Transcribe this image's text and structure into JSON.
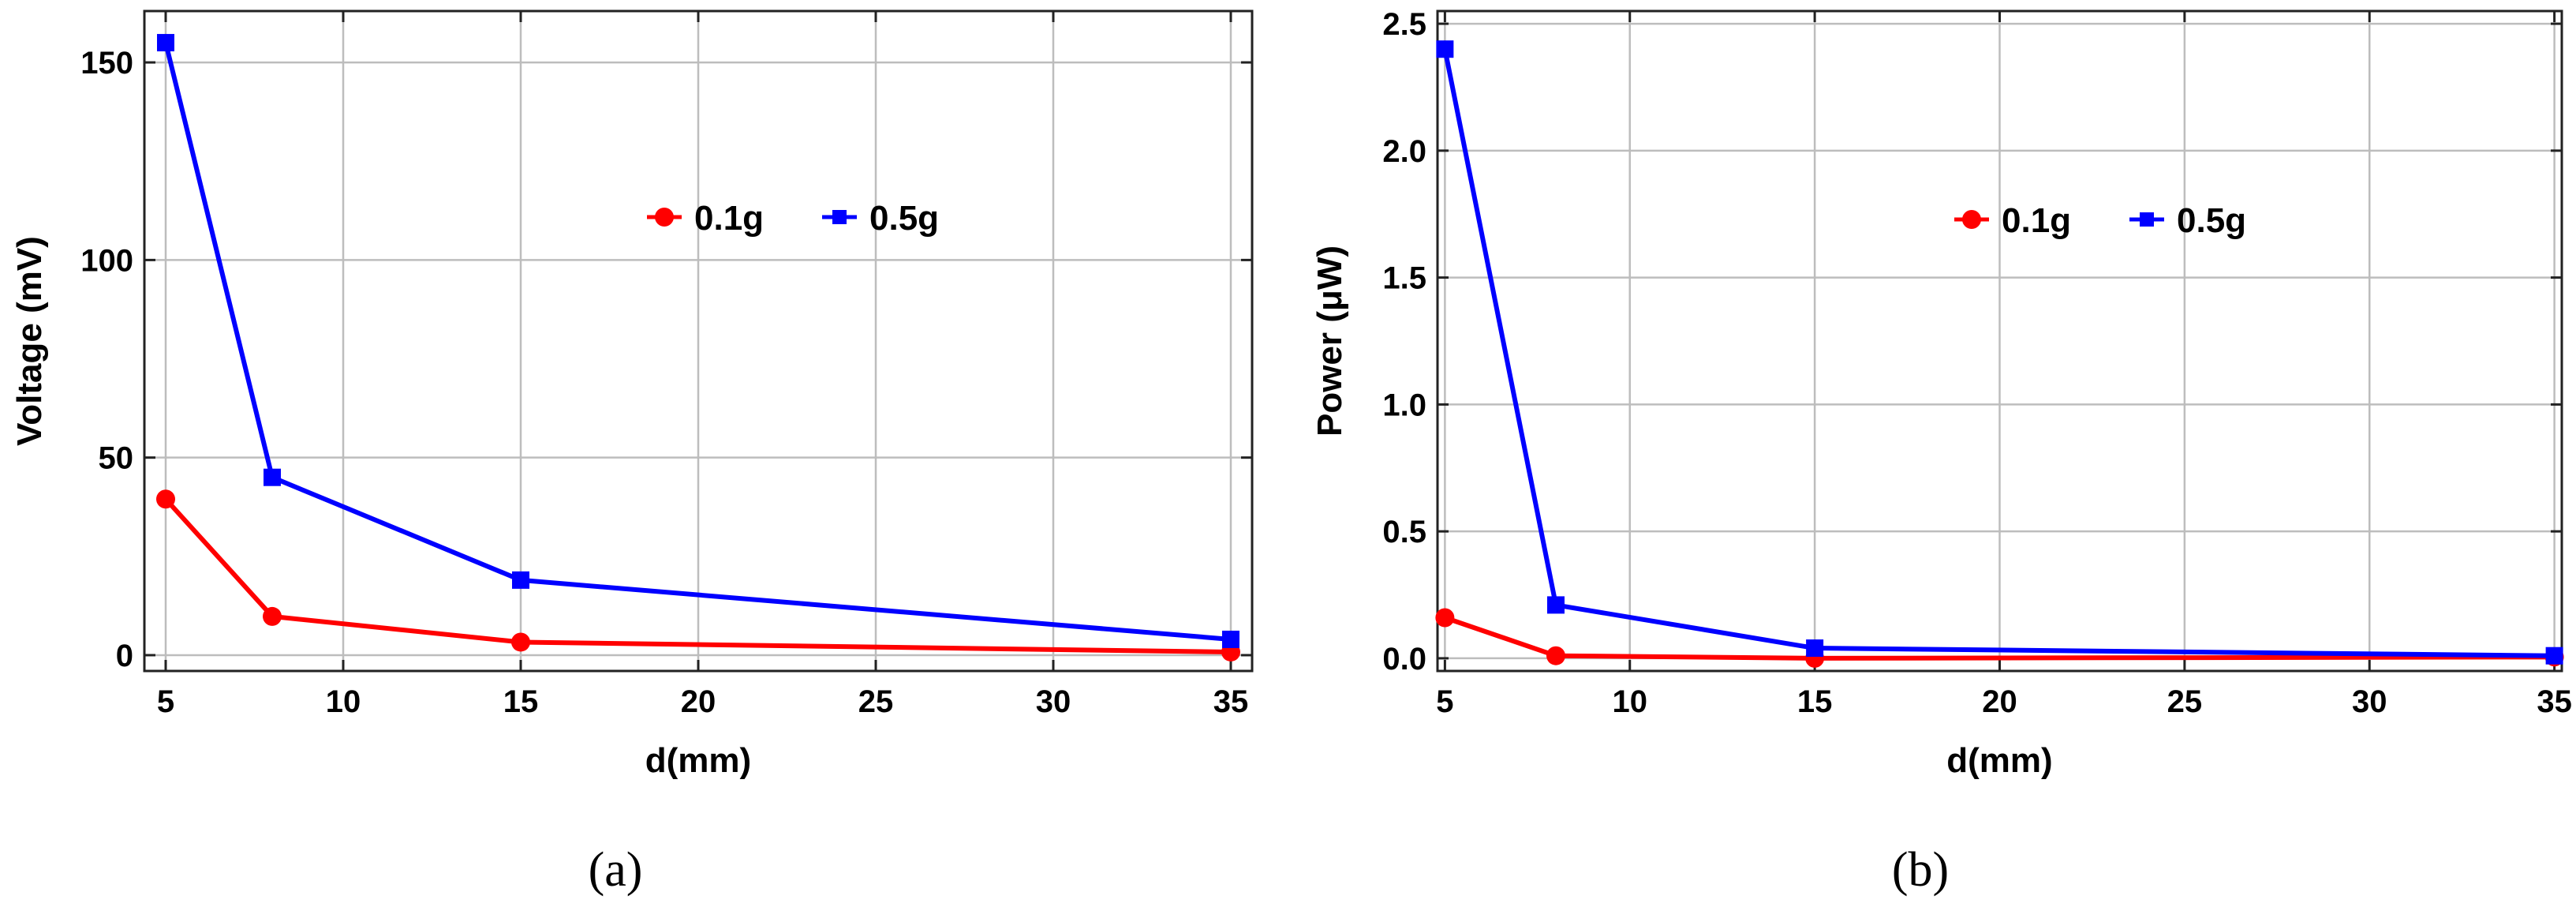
{
  "colors": {
    "0.1g": "#ff0000",
    "0.5g": "#0000ff"
  },
  "chart_data": [
    {
      "type": "line",
      "caption": "(a)",
      "xlabel": "d(mm)",
      "ylabel": "Voltage (mV)",
      "xlim": [
        4.4,
        35.6
      ],
      "ylim": [
        -4,
        163
      ],
      "xticks": [
        5,
        10,
        15,
        20,
        25,
        30,
        35
      ],
      "yticks": [
        0,
        50,
        100,
        150
      ],
      "ytick_labels": [
        "0",
        "50",
        "100",
        "150"
      ],
      "grid": true,
      "legend_position": "upper-middle",
      "x": [
        5,
        8,
        15,
        35
      ],
      "series": [
        {
          "name": "0.1g",
          "marker": "circle",
          "color": "#ff0000",
          "values": [
            39.5,
            9.8,
            3.3,
            0.8
          ]
        },
        {
          "name": "0.5g",
          "marker": "square",
          "color": "#0000ff",
          "values": [
            155,
            45,
            19,
            4
          ]
        }
      ]
    },
    {
      "type": "line",
      "caption": "(b)",
      "xlabel": "d(mm)",
      "ylabel": "Power (μW)",
      "xlim": [
        4.8,
        35.2
      ],
      "ylim": [
        -0.05,
        2.55
      ],
      "xticks": [
        5,
        10,
        15,
        20,
        25,
        30,
        35
      ],
      "yticks": [
        0,
        0.5,
        1.0,
        1.5,
        2.0,
        2.5
      ],
      "ytick_labels": [
        "0.0",
        "0.5",
        "1.0",
        "1.5",
        "2.0",
        "2.5"
      ],
      "grid": true,
      "legend_position": "upper-middle",
      "x": [
        5,
        8,
        15,
        35
      ],
      "series": [
        {
          "name": "0.1g",
          "marker": "circle",
          "color": "#ff0000",
          "values": [
            0.16,
            0.01,
            0.0,
            0.005
          ]
        },
        {
          "name": "0.5g",
          "marker": "square",
          "color": "#0000ff",
          "values": [
            2.4,
            0.21,
            0.04,
            0.01
          ]
        }
      ]
    }
  ]
}
